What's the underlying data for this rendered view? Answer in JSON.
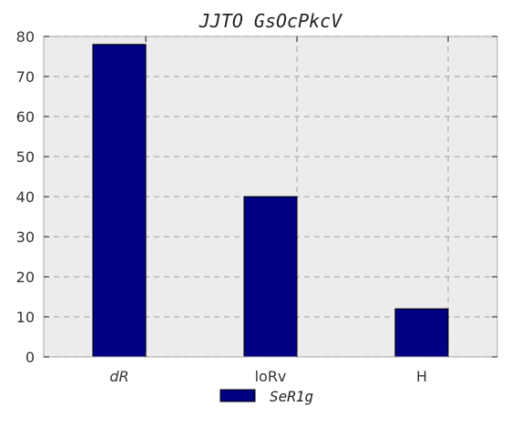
{
  "chart_data": {
    "type": "bar",
    "title": "JJTO GsOcPkcV",
    "categories": [
      "dR",
      "loRv",
      "H"
    ],
    "series": [
      {
        "name": "SeR1g",
        "values": [
          78,
          40,
          12
        ],
        "color": "#000080"
      }
    ],
    "ylim": [
      0,
      80
    ],
    "yticks": [
      0,
      10,
      20,
      30,
      40,
      50,
      60,
      70,
      80
    ],
    "grid": true,
    "legend_position": "bottom-center",
    "plot_background": "#ececec",
    "grid_color": "#b0b0b0"
  }
}
